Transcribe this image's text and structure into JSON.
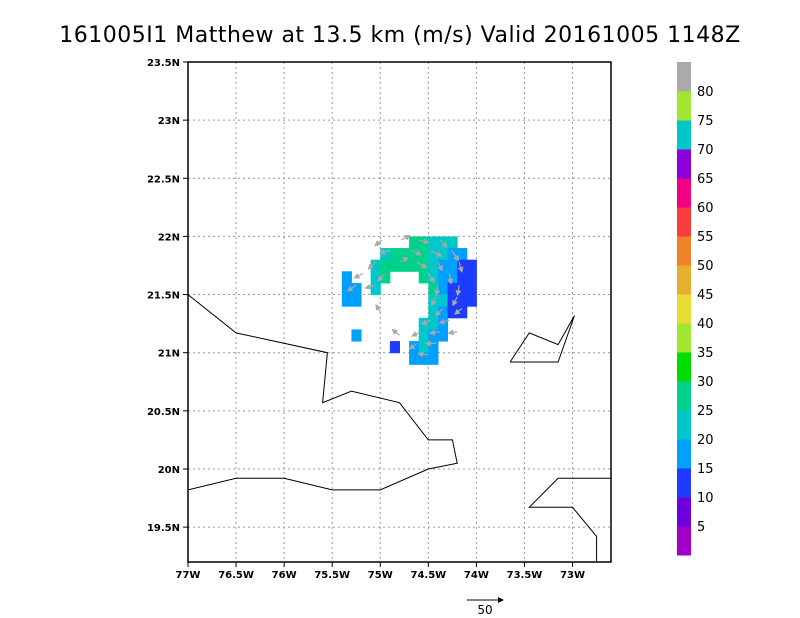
{
  "title": "161005I1 Matthew at 13.5 km (m/s) Valid 20161005 1148Z",
  "chart_data": {
    "type": "heatmap",
    "units": "m/s",
    "xlim": [
      -77.0,
      -72.6
    ],
    "ylim": [
      19.2,
      23.5
    ],
    "x_ticks": [
      {
        "value": -77.0,
        "label": "77W"
      },
      {
        "value": -76.5,
        "label": "76.5W"
      },
      {
        "value": -76.0,
        "label": "76W"
      },
      {
        "value": -75.5,
        "label": "75.5W"
      },
      {
        "value": -75.0,
        "label": "75W"
      },
      {
        "value": -74.5,
        "label": "74.5W"
      },
      {
        "value": -74.0,
        "label": "74W"
      },
      {
        "value": -73.5,
        "label": "73.5W"
      },
      {
        "value": -73.0,
        "label": "73W"
      }
    ],
    "y_ticks": [
      {
        "value": 19.5,
        "label": "19.5N"
      },
      {
        "value": 20.0,
        "label": "20N"
      },
      {
        "value": 20.5,
        "label": "20.5N"
      },
      {
        "value": 21.0,
        "label": "21N"
      },
      {
        "value": 21.5,
        "label": "21.5N"
      },
      {
        "value": 22.0,
        "label": "22N"
      },
      {
        "value": 22.5,
        "label": "22.5N"
      },
      {
        "value": 23.0,
        "label": "23N"
      },
      {
        "value": 23.5,
        "label": "23.5N"
      }
    ],
    "grid": true,
    "colorbar": {
      "colors": [
        "#a000c8",
        "#6e00dc",
        "#1e3cff",
        "#00a0ff",
        "#00c8c8",
        "#00d28c",
        "#00dc00",
        "#a0e632",
        "#e6dc32",
        "#e6af2d",
        "#f08228",
        "#fa3c3c",
        "#f00082",
        "#8c00dc",
        "#00c8c8",
        "#a0e632",
        "#aaaaaa"
      ],
      "labels": [
        "5",
        "10",
        "15",
        "20",
        "25",
        "30",
        "35",
        "40",
        "45",
        "50",
        "55",
        "60",
        "65",
        "70",
        "75",
        "80"
      ]
    },
    "coastlines": [
      [
        [
          -77.0,
          21.5
        ],
        [
          -76.5,
          21.17
        ],
        [
          -75.55,
          21.0
        ],
        [
          -75.6,
          20.57
        ],
        [
          -75.3,
          20.67
        ],
        [
          -74.8,
          20.57
        ],
        [
          -74.5,
          20.25
        ],
        [
          -74.25,
          20.25
        ],
        [
          -74.2,
          20.05
        ],
        [
          -74.5,
          20.0
        ],
        [
          -75.0,
          19.82
        ],
        [
          -75.5,
          19.82
        ],
        [
          -76.0,
          19.92
        ],
        [
          -76.5,
          19.92
        ],
        [
          -77.0,
          19.82
        ]
      ],
      [
        [
          -73.65,
          20.92
        ],
        [
          -73.45,
          21.17
        ],
        [
          -73.15,
          21.07
        ],
        [
          -72.98,
          21.32
        ],
        [
          -73.15,
          20.92
        ],
        [
          -73.65,
          20.92
        ]
      ],
      [
        [
          -72.6,
          19.92
        ],
        [
          -73.15,
          19.92
        ],
        [
          -73.45,
          19.67
        ],
        [
          -73.0,
          19.67
        ],
        [
          -72.75,
          19.42
        ],
        [
          -72.75,
          19.2
        ]
      ]
    ],
    "wind_field": [
      {
        "lat": 21.95,
        "lon": -74.65,
        "value": 26
      },
      {
        "lat": 21.95,
        "lon": -74.55,
        "value": 26
      },
      {
        "lat": 21.95,
        "lon": -74.45,
        "value": 24
      },
      {
        "lat": 21.95,
        "lon": -74.35,
        "value": 22
      },
      {
        "lat": 21.95,
        "lon": -74.25,
        "value": 20
      },
      {
        "lat": 21.85,
        "lon": -74.95,
        "value": 24
      },
      {
        "lat": 21.85,
        "lon": -74.85,
        "value": 26
      },
      {
        "lat": 21.85,
        "lon": -74.75,
        "value": 28
      },
      {
        "lat": 21.85,
        "lon": -74.65,
        "value": 27
      },
      {
        "lat": 21.85,
        "lon": -74.55,
        "value": 26
      },
      {
        "lat": 21.85,
        "lon": -74.45,
        "value": 23
      },
      {
        "lat": 21.85,
        "lon": -74.35,
        "value": 21
      },
      {
        "lat": 21.85,
        "lon": -74.25,
        "value": 19
      },
      {
        "lat": 21.85,
        "lon": -74.15,
        "value": 17
      },
      {
        "lat": 21.75,
        "lon": -75.05,
        "value": 22
      },
      {
        "lat": 21.75,
        "lon": -74.95,
        "value": 26
      },
      {
        "lat": 21.75,
        "lon": -74.85,
        "value": 28
      },
      {
        "lat": 21.75,
        "lon": -74.75,
        "value": 29
      },
      {
        "lat": 21.75,
        "lon": -74.65,
        "value": 27
      },
      {
        "lat": 21.75,
        "lon": -74.55,
        "value": 25
      },
      {
        "lat": 21.75,
        "lon": -74.45,
        "value": 22
      },
      {
        "lat": 21.75,
        "lon": -74.35,
        "value": 19
      },
      {
        "lat": 21.75,
        "lon": -74.25,
        "value": 17
      },
      {
        "lat": 21.75,
        "lon": -74.15,
        "value": 14
      },
      {
        "lat": 21.75,
        "lon": -74.05,
        "value": 11
      },
      {
        "lat": 21.65,
        "lon": -75.35,
        "value": 18
      },
      {
        "lat": 21.65,
        "lon": -75.05,
        "value": 24
      },
      {
        "lat": 21.65,
        "lon": -74.95,
        "value": 27
      },
      {
        "lat": 21.65,
        "lon": -74.55,
        "value": 26
      },
      {
        "lat": 21.65,
        "lon": -74.45,
        "value": 23
      },
      {
        "lat": 21.65,
        "lon": -74.35,
        "value": 19
      },
      {
        "lat": 21.65,
        "lon": -74.25,
        "value": 16
      },
      {
        "lat": 21.65,
        "lon": -74.15,
        "value": 12
      },
      {
        "lat": 21.65,
        "lon": -74.05,
        "value": 10
      },
      {
        "lat": 21.55,
        "lon": -75.35,
        "value": 17
      },
      {
        "lat": 21.55,
        "lon": -75.25,
        "value": 16
      },
      {
        "lat": 21.55,
        "lon": -75.05,
        "value": 22
      },
      {
        "lat": 21.55,
        "lon": -74.45,
        "value": 25
      },
      {
        "lat": 21.55,
        "lon": -74.35,
        "value": 19
      },
      {
        "lat": 21.55,
        "lon": -74.25,
        "value": 13
      },
      {
        "lat": 21.55,
        "lon": -74.15,
        "value": 12
      },
      {
        "lat": 21.55,
        "lon": -74.05,
        "value": 11
      },
      {
        "lat": 21.45,
        "lon": -75.35,
        "value": 16
      },
      {
        "lat": 21.45,
        "lon": -75.25,
        "value": 15
      },
      {
        "lat": 21.45,
        "lon": -74.45,
        "value": 24
      },
      {
        "lat": 21.45,
        "lon": -74.35,
        "value": 20
      },
      {
        "lat": 21.45,
        "lon": -74.25,
        "value": 14
      },
      {
        "lat": 21.45,
        "lon": -74.15,
        "value": 11
      },
      {
        "lat": 21.45,
        "lon": -74.05,
        "value": 10
      },
      {
        "lat": 21.35,
        "lon": -74.45,
        "value": 22
      },
      {
        "lat": 21.35,
        "lon": -74.35,
        "value": 18
      },
      {
        "lat": 21.35,
        "lon": -74.25,
        "value": 14
      },
      {
        "lat": 21.35,
        "lon": -74.15,
        "value": 12
      },
      {
        "lat": 21.25,
        "lon": -74.55,
        "value": 23
      },
      {
        "lat": 21.25,
        "lon": -74.45,
        "value": 21
      },
      {
        "lat": 21.25,
        "lon": -74.35,
        "value": 16
      },
      {
        "lat": 21.15,
        "lon": -75.25,
        "value": 18
      },
      {
        "lat": 21.15,
        "lon": -74.55,
        "value": 22
      },
      {
        "lat": 21.15,
        "lon": -74.45,
        "value": 19
      },
      {
        "lat": 21.15,
        "lon": -74.35,
        "value": 15
      },
      {
        "lat": 21.05,
        "lon": -74.85,
        "value": 11
      },
      {
        "lat": 21.05,
        "lon": -74.65,
        "value": 17
      },
      {
        "lat": 21.05,
        "lon": -74.55,
        "value": 20
      },
      {
        "lat": 21.05,
        "lon": -74.45,
        "value": 18
      },
      {
        "lat": 20.95,
        "lon": -74.65,
        "value": 18
      },
      {
        "lat": 20.95,
        "lon": -74.55,
        "value": 19
      },
      {
        "lat": 20.95,
        "lon": -74.45,
        "value": 17
      }
    ],
    "wind_vectors": [
      {
        "lat": 21.97,
        "lon": -74.98,
        "u": -10,
        "v": -8
      },
      {
        "lat": 21.97,
        "lon": -74.78,
        "u": 12,
        "v": 6
      },
      {
        "lat": 21.97,
        "lon": -74.6,
        "u": 14,
        "v": -4
      },
      {
        "lat": 21.97,
        "lon": -74.38,
        "u": 10,
        "v": -10
      },
      {
        "lat": 21.88,
        "lon": -74.9,
        "u": -14,
        "v": -4
      },
      {
        "lat": 21.88,
        "lon": -74.68,
        "u": 14,
        "v": -6
      },
      {
        "lat": 21.88,
        "lon": -74.48,
        "u": 16,
        "v": -8
      },
      {
        "lat": 21.88,
        "lon": -74.26,
        "u": 10,
        "v": -14
      },
      {
        "lat": 21.78,
        "lon": -75.05,
        "u": -10,
        "v": -10
      },
      {
        "lat": 21.78,
        "lon": -74.8,
        "u": 12,
        "v": 6
      },
      {
        "lat": 21.78,
        "lon": -74.62,
        "u": 14,
        "v": -8
      },
      {
        "lat": 21.78,
        "lon": -74.4,
        "u": 6,
        "v": -12
      },
      {
        "lat": 21.78,
        "lon": -74.18,
        "u": 4,
        "v": -14
      },
      {
        "lat": 21.68,
        "lon": -75.18,
        "u": -12,
        "v": -6
      },
      {
        "lat": 21.68,
        "lon": -74.95,
        "u": -10,
        "v": -10
      },
      {
        "lat": 21.68,
        "lon": -74.5,
        "u": 8,
        "v": -12
      },
      {
        "lat": 21.68,
        "lon": -74.28,
        "u": 2,
        "v": -14
      },
      {
        "lat": 21.58,
        "lon": -75.25,
        "u": -12,
        "v": -8
      },
      {
        "lat": 21.58,
        "lon": -75.05,
        "u": -14,
        "v": -4
      },
      {
        "lat": 21.58,
        "lon": -74.4,
        "u": -2,
        "v": -14
      },
      {
        "lat": 21.58,
        "lon": -74.18,
        "u": -2,
        "v": -14
      },
      {
        "lat": 21.48,
        "lon": -74.42,
        "u": -6,
        "v": -12
      },
      {
        "lat": 21.48,
        "lon": -74.2,
        "u": -6,
        "v": -12
      },
      {
        "lat": 21.38,
        "lon": -74.35,
        "u": -10,
        "v": -10
      },
      {
        "lat": 21.38,
        "lon": -74.15,
        "u": -10,
        "v": -8
      },
      {
        "lat": 21.28,
        "lon": -74.48,
        "u": -12,
        "v": -6
      },
      {
        "lat": 21.28,
        "lon": -74.28,
        "u": -14,
        "v": -4
      },
      {
        "lat": 21.18,
        "lon": -74.58,
        "u": -12,
        "v": -6
      },
      {
        "lat": 21.18,
        "lon": -74.38,
        "u": -14,
        "v": -2
      },
      {
        "lat": 21.18,
        "lon": -74.2,
        "u": -12,
        "v": -2
      },
      {
        "lat": 21.08,
        "lon": -74.62,
        "u": -10,
        "v": -8
      },
      {
        "lat": 21.08,
        "lon": -74.42,
        "u": -14,
        "v": 0
      },
      {
        "lat": 21.35,
        "lon": -75.0,
        "u": -6,
        "v": 10
      },
      {
        "lat": 21.15,
        "lon": -74.8,
        "u": -10,
        "v": 8
      },
      {
        "lat": 20.98,
        "lon": -74.5,
        "u": -14,
        "v": 2
      }
    ],
    "reference_vector": {
      "value": 50,
      "label": "50"
    }
  }
}
